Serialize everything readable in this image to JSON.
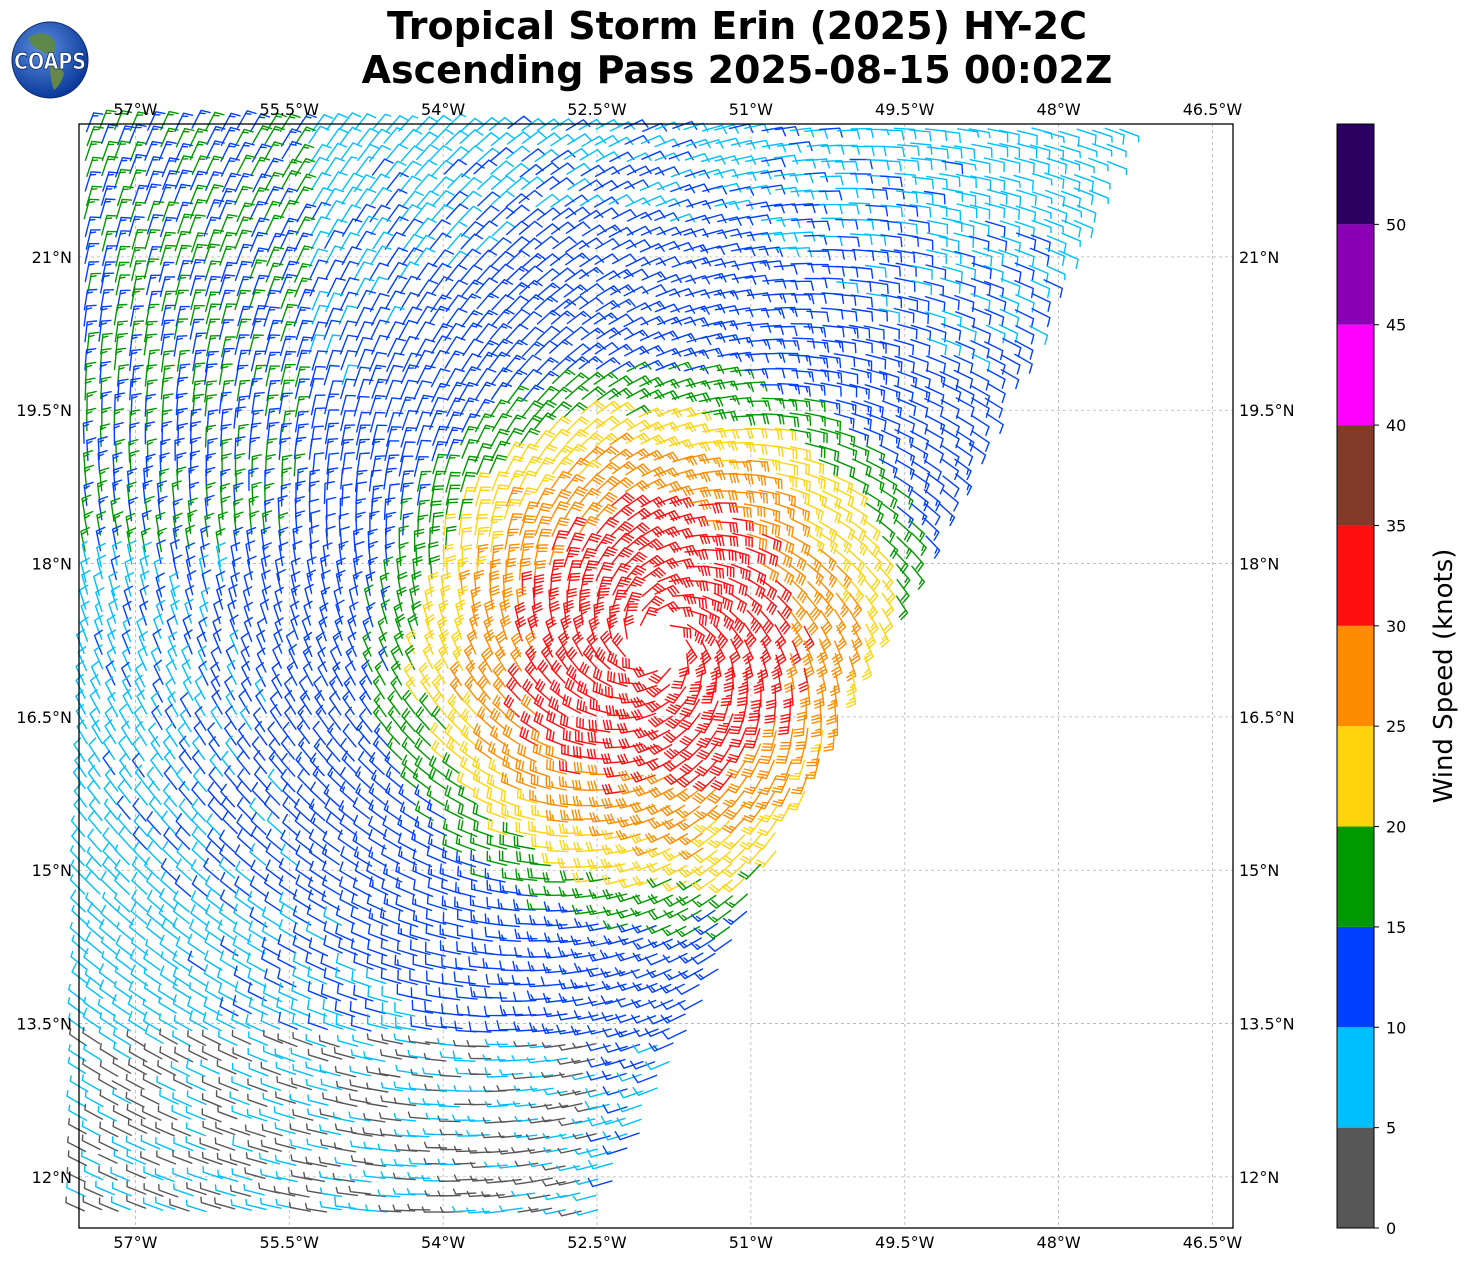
{
  "title": {
    "line1": "Tropical Storm Erin (2025) HY-2C",
    "line2": "Ascending Pass 2025-08-15 00:02Z"
  },
  "logo": {
    "text": "COAPS",
    "icon": "globe-icon"
  },
  "map": {
    "lon_range": [
      -57.55,
      -46.3
    ],
    "lat_range": [
      11.5,
      22.3
    ],
    "lon_ticks": [
      "57°W",
      "55.5°W",
      "54°W",
      "52.5°W",
      "51°W",
      "49.5°W",
      "48°W",
      "46.5°W"
    ],
    "lat_ticks": [
      "21°N",
      "19.5°N",
      "18°N",
      "16.5°N",
      "15°N",
      "13.5°N",
      "12°N"
    ],
    "gridlines": true,
    "storm_center": {
      "lon": -51.9,
      "lat": 17.2
    }
  },
  "colorbar": {
    "label": "Wind Speed (knots)",
    "tick_labels": [
      "0",
      "5",
      "10",
      "15",
      "20",
      "25",
      "30",
      "35",
      "40",
      "45",
      "50"
    ],
    "bins": [
      {
        "min": 0,
        "max": 5,
        "color": "#575757"
      },
      {
        "min": 5,
        "max": 10,
        "color": "#00bfff"
      },
      {
        "min": 10,
        "max": 15,
        "color": "#0040ff"
      },
      {
        "min": 15,
        "max": 20,
        "color": "#009900"
      },
      {
        "min": 20,
        "max": 25,
        "color": "#ffd40f"
      },
      {
        "min": 25,
        "max": 30,
        "color": "#ff8c00"
      },
      {
        "min": 30,
        "max": 35,
        "color": "#ff0f0f"
      },
      {
        "min": 35,
        "max": 40,
        "color": "#803c28"
      },
      {
        "min": 40,
        "max": 45,
        "color": "#ff00ff"
      },
      {
        "min": 45,
        "max": 50,
        "color": "#8c00b5"
      },
      {
        "min": 50,
        "max": 55,
        "color": "#2b0060"
      }
    ]
  }
}
